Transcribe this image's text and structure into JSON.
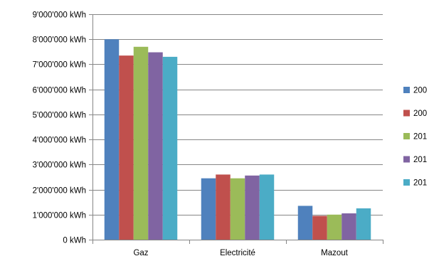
{
  "chart_data": {
    "type": "bar",
    "categories": [
      "Gaz",
      "Electricité",
      "Mazout"
    ],
    "ylim": [
      0,
      9000000
    ],
    "y_tick_step": 1000000,
    "y_unit": "kWh",
    "grid": true,
    "legend_position": "right",
    "series": [
      {
        "name": "200",
        "color": "#4F81BD",
        "values": [
          8000000,
          2450000,
          1350000
        ]
      },
      {
        "name": "200",
        "color": "#C0504D",
        "values": [
          7350000,
          2600000,
          950000
        ]
      },
      {
        "name": "201",
        "color": "#9BBB59",
        "values": [
          7700000,
          2450000,
          1000000
        ]
      },
      {
        "name": "201",
        "color": "#8064A2",
        "values": [
          7480000,
          2560000,
          1050000
        ]
      },
      {
        "name": "201",
        "color": "#4BACC6",
        "values": [
          7300000,
          2600000,
          1250000
        ]
      }
    ],
    "y_tick_labels": [
      "0 kWh",
      "1'000'000 kWh",
      "2'000'000 kWh",
      "3'000'000 kWh",
      "4'000'000 kWh",
      "5'000'000 kWh",
      "6'000'000 kWh",
      "7'000'000 kWh",
      "8'000'000 kWh",
      "9'000'000 kWh"
    ]
  }
}
